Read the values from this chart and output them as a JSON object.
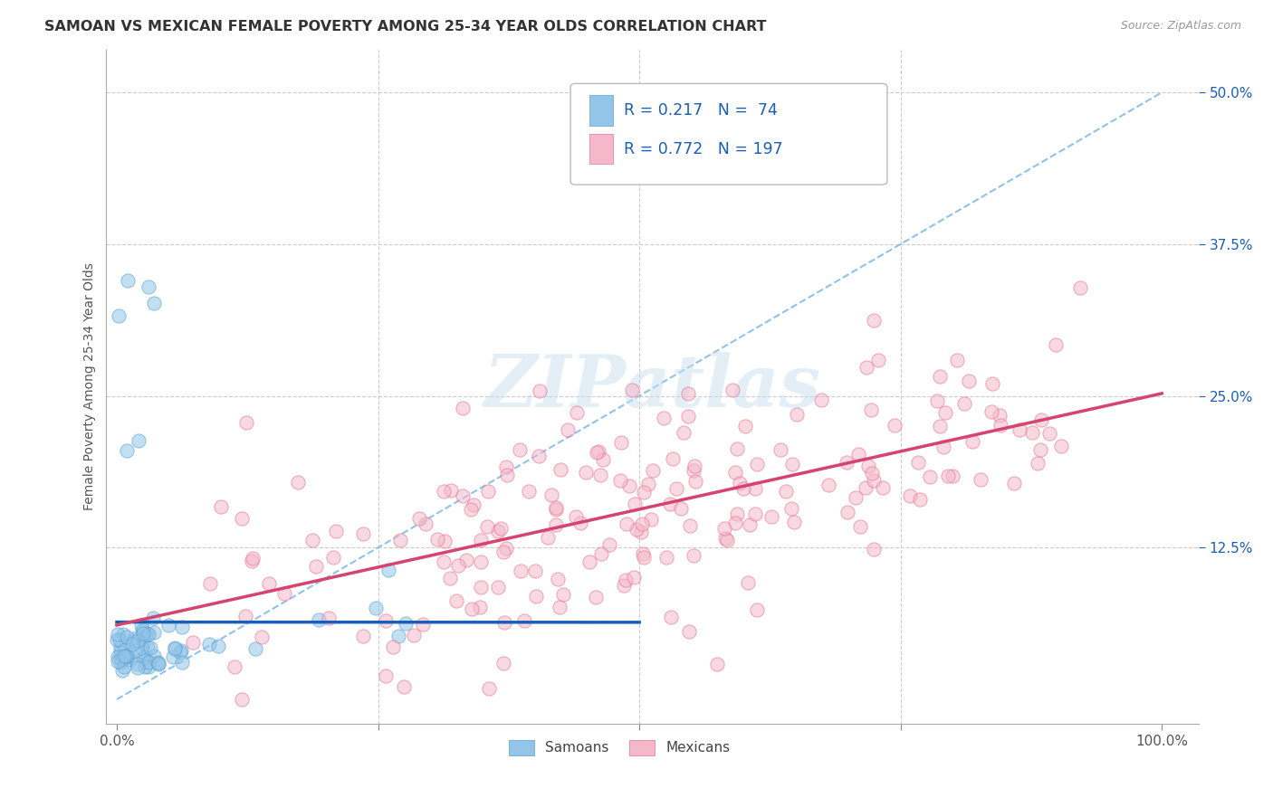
{
  "title": "SAMOAN VS MEXICAN FEMALE POVERTY AMONG 25-34 YEAR OLDS CORRELATION CHART",
  "source": "Source: ZipAtlas.com",
  "ylabel": "Female Poverty Among 25-34 Year Olds",
  "ytick_labels": [
    "12.5%",
    "25.0%",
    "37.5%",
    "50.0%"
  ],
  "ytick_values": [
    0.125,
    0.25,
    0.375,
    0.5
  ],
  "xlim": [
    0.0,
    1.0
  ],
  "ylim": [
    0.0,
    0.52
  ],
  "samoan_color": "#92c5e8",
  "samoan_edge_color": "#5a9fd4",
  "mexican_color": "#f4b8cb",
  "mexican_edge_color": "#e87090",
  "samoan_line_color": "#1a5eb8",
  "mexican_line_color": "#d4446e",
  "diagonal_color": "#7ab8e8",
  "R_samoan": 0.217,
  "N_samoan": 74,
  "R_mexican": 0.772,
  "N_mexican": 197,
  "legend_text_color": "#1a5eb8",
  "watermark_color": "#c8dff0",
  "background_color": "#ffffff",
  "grid_color": "#cccccc",
  "title_color": "#333333",
  "ytick_color": "#1a5eb8"
}
